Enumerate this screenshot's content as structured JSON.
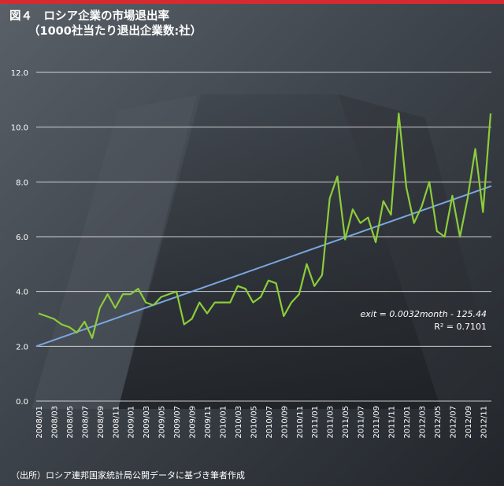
{
  "title": "図４　ロシア企業の市場退出率",
  "subtitle": "（1000社当たり退出企業数:社）",
  "source": "（出所）ロシア連邦国家統計局公開データに基づき筆者作成",
  "equation": {
    "line1": "exit = 0.0032month - 125.44",
    "line2": "R² = 0.7101"
  },
  "colors": {
    "background": "#3b4148",
    "accent_bar": "#d52b30",
    "series": "#8ccd3a",
    "trend": "#7aa7e0",
    "gridline": "#e6e6e6",
    "text": "#ffffff"
  },
  "chart_data": {
    "type": "line",
    "title": "図４　ロシア企業の市場退出率",
    "subtitle": "（1000社当たり退出企業数:社）",
    "ylim": [
      0,
      12
    ],
    "yticks": [
      "0.0",
      "2.0",
      "4.0",
      "6.0",
      "8.0",
      "10.0",
      "12.0"
    ],
    "grid": true,
    "x": [
      "2008/01",
      "2008/02",
      "2008/03",
      "2008/04",
      "2008/05",
      "2008/06",
      "2008/07",
      "2008/08",
      "2008/09",
      "2008/10",
      "2008/11",
      "2008/12",
      "2009/01",
      "2009/02",
      "2009/03",
      "2009/04",
      "2009/05",
      "2009/06",
      "2009/07",
      "2009/08",
      "2009/09",
      "2009/10",
      "2009/11",
      "2009/12",
      "2010/01",
      "2010/02",
      "2010/03",
      "2010/04",
      "2010/05",
      "2010/06",
      "2010/07",
      "2010/08",
      "2010/09",
      "2010/10",
      "2010/11",
      "2010/12",
      "2011/01",
      "2011/02",
      "2011/03",
      "2011/04",
      "2011/05",
      "2011/06",
      "2011/07",
      "2011/08",
      "2011/09",
      "2011/10",
      "2011/11",
      "2011/12",
      "2012/01",
      "2012/02",
      "2012/03",
      "2012/04",
      "2012/05",
      "2012/06",
      "2012/07",
      "2012/08",
      "2012/09",
      "2012/10",
      "2012/11",
      "2012/12"
    ],
    "x_tick_labels": [
      "2008/01",
      "2008/03",
      "2008/05",
      "2008/07",
      "2008/09",
      "2008/11",
      "2009/01",
      "2009/03",
      "2009/05",
      "2009/07",
      "2009/09",
      "2009/11",
      "2010/01",
      "2010/03",
      "2010/05",
      "2010/07",
      "2010/09",
      "2010/11",
      "2011/01",
      "2011/03",
      "2011/05",
      "2011/07",
      "2011/09",
      "2011/11",
      "2012/01",
      "2012/03",
      "2012/05",
      "2012/07",
      "2012/09",
      "2012/11"
    ],
    "series": [
      {
        "values": [
          3.2,
          3.1,
          3.0,
          2.8,
          2.7,
          2.5,
          2.9,
          2.3,
          3.4,
          3.9,
          3.4,
          3.9,
          3.9,
          4.1,
          3.6,
          3.5,
          3.8,
          3.9,
          4.0,
          2.8,
          3.0,
          3.6,
          3.2,
          3.6,
          3.6,
          3.6,
          4.2,
          4.1,
          3.6,
          3.8,
          4.4,
          4.3,
          3.1,
          3.6,
          3.9,
          5.0,
          4.2,
          4.6,
          7.4,
          8.2,
          5.9,
          7.0,
          6.5,
          6.7,
          5.8,
          7.3,
          6.8,
          10.5,
          7.8,
          6.5,
          7.1,
          8.0,
          6.2,
          6.0,
          7.5,
          6.0,
          7.4,
          9.2,
          6.9,
          10.5
        ]
      }
    ],
    "trendline": {
      "type": "linear",
      "label": "exit = 0.0032month - 125.44",
      "r2_label": "R² = 0.7101",
      "start": 2.0,
      "end": 7.85
    }
  }
}
